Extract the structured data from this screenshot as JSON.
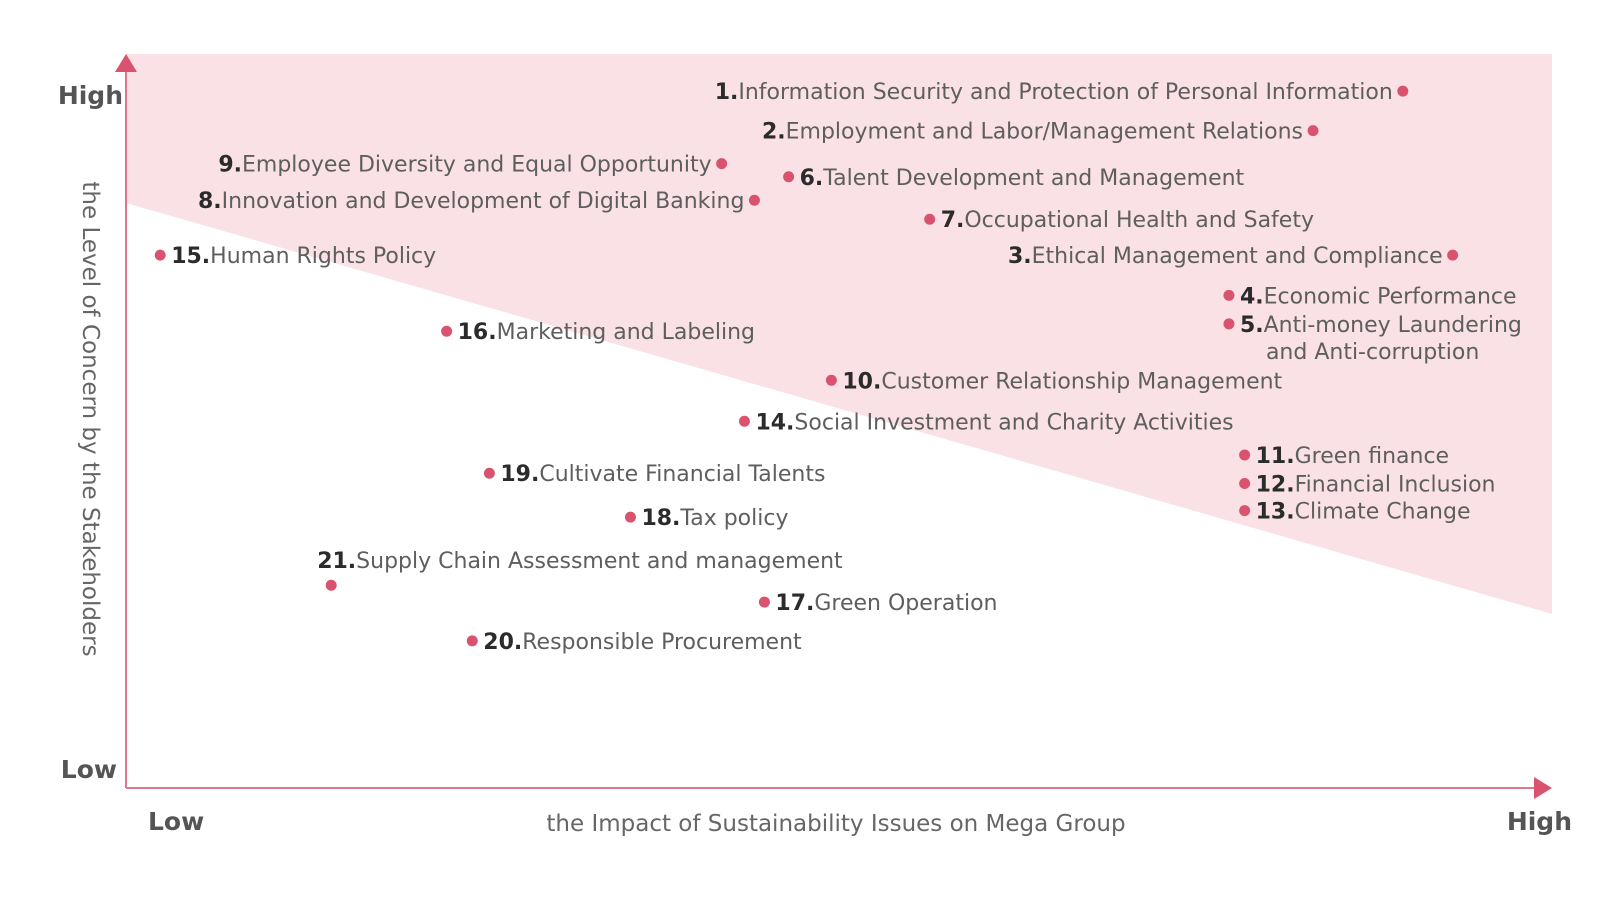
{
  "chart_data": {
    "type": "scatter",
    "xlabel": "the Impact of Sustainability Issues on Mega Group",
    "ylabel": "the Level of Concern by the Stakeholders",
    "x_low_label": "Low",
    "x_high_label": "High",
    "y_low_label": "Low",
    "y_high_label": "High",
    "xlim": [
      0,
      100
    ],
    "ylim": [
      0,
      100
    ],
    "grid": false,
    "colors": {
      "accent": "#d9536f",
      "region": "#f9e1e6",
      "axis": "#e0758d"
    },
    "points": [
      {
        "num": "1.",
        "label": "Information Security and Protection of Personal Information",
        "x": 89.6,
        "y": 95.2,
        "side": "left"
      },
      {
        "num": "2.",
        "label": "Employment and Labor/Management Relations",
        "x": 83.3,
        "y": 89.8,
        "side": "left"
      },
      {
        "num": "3.",
        "label": "Ethical Management and Compliance",
        "x": 93.1,
        "y": 72.8,
        "side": "left"
      },
      {
        "num": "4.",
        "label": "Economic Performance",
        "x": 77.4,
        "y": 67.3,
        "side": "right"
      },
      {
        "num": "5.",
        "label": "Anti-money Laundering",
        "label2": "and Anti-corruption",
        "x": 77.4,
        "y": 63.4,
        "side": "right"
      },
      {
        "num": "6.",
        "label": "Talent Development and Management",
        "x": 46.5,
        "y": 83.5,
        "side": "right"
      },
      {
        "num": "7.",
        "label": "Occupational Health and Safety",
        "x": 56.4,
        "y": 77.7,
        "side": "right"
      },
      {
        "num": "8.",
        "label": "Innovation and Development of Digital Banking",
        "x": 44.1,
        "y": 80.3,
        "side": "left"
      },
      {
        "num": "9.",
        "label": "Employee Diversity and Equal Opportunity",
        "x": 41.8,
        "y": 85.3,
        "side": "left"
      },
      {
        "num": "10.",
        "label": "Customer Relationship Management",
        "x": 49.5,
        "y": 55.7,
        "side": "right"
      },
      {
        "num": "11.",
        "label": "Green finance",
        "x": 78.5,
        "y": 45.5,
        "side": "right"
      },
      {
        "num": "12.",
        "label": "Financial Inclusion",
        "x": 78.5,
        "y": 41.6,
        "side": "right"
      },
      {
        "num": "13.",
        "label": "Climate Change",
        "x": 78.5,
        "y": 37.9,
        "side": "right"
      },
      {
        "num": "14.",
        "label": "Social Investment and Charity Activities",
        "x": 43.4,
        "y": 50.1,
        "side": "right"
      },
      {
        "num": "15.",
        "label": "Human Rights Policy",
        "x": 2.4,
        "y": 72.8,
        "side": "right"
      },
      {
        "num": "16.",
        "label": "Marketing and Labeling",
        "x": 22.5,
        "y": 62.4,
        "side": "right"
      },
      {
        "num": "17.",
        "label": "Green Operation",
        "x": 44.8,
        "y": 25.4,
        "side": "right"
      },
      {
        "num": "18.",
        "label": "Tax policy",
        "x": 35.4,
        "y": 37.0,
        "side": "right"
      },
      {
        "num": "19.",
        "label": "Cultivate Financial Talents",
        "x": 25.5,
        "y": 43.0,
        "side": "right"
      },
      {
        "num": "20.",
        "label": "Responsible Procurement",
        "x": 24.3,
        "y": 20.1,
        "side": "right"
      },
      {
        "num": "21.",
        "label": "Supply Chain Assessment and management",
        "x": 14.4,
        "y": 27.7,
        "side": "above"
      }
    ]
  }
}
